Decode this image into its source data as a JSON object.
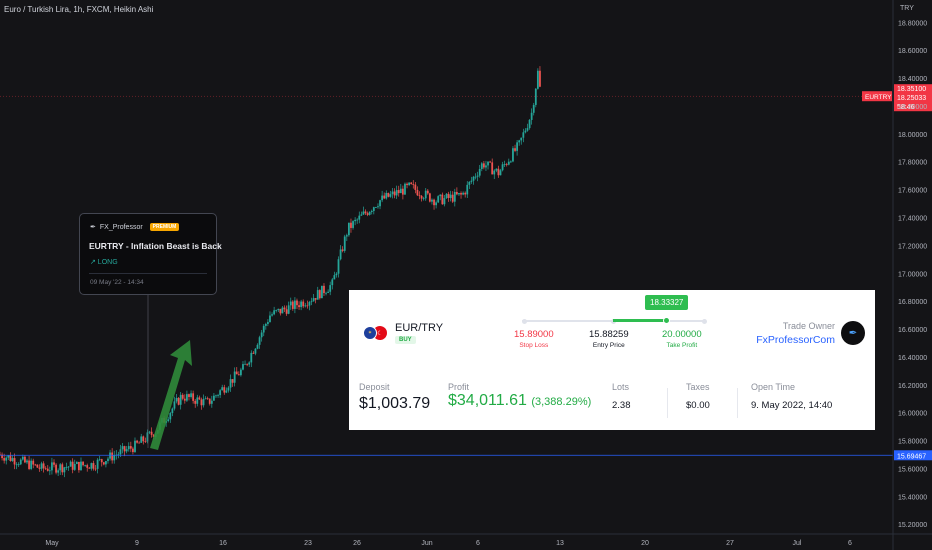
{
  "chart_title": "Euro / Turkish Lira, 1h, FXCM, Heikin Ashi",
  "axis_unit": "TRY",
  "colors": {
    "background": "#141417",
    "up": "#26a69a",
    "down": "#ef5350",
    "entry_line": "#2962ff",
    "last_price_tag": "#f23645",
    "arrow": "#2f8a3a"
  },
  "chart_data": {
    "type": "candlestick",
    "y_ticks": [
      "18.80000",
      "18.60000",
      "18.40000",
      "18.20000",
      "18.00000",
      "17.80000",
      "17.60000",
      "17.40000",
      "17.20000",
      "17.00000",
      "16.80000",
      "16.60000",
      "16.40000",
      "16.20000",
      "16.00000",
      "15.80000",
      "15.60000",
      "15.40000",
      "15.20000"
    ],
    "y_tick_values": [
      18.8,
      18.6,
      18.4,
      18.2,
      18.0,
      17.8,
      17.6,
      17.4,
      17.2,
      17.0,
      16.8,
      16.6,
      16.4,
      16.2,
      16.0,
      15.8,
      15.6,
      15.4,
      15.2
    ],
    "ylim": [
      15.13,
      18.96
    ],
    "x_ticks": [
      "May",
      "9",
      "16",
      "23",
      "26",
      "Jun",
      "6",
      "13",
      "20",
      "27",
      "Jul",
      "6"
    ],
    "price_path": [
      {
        "time_index": 0,
        "price": 15.7
      },
      {
        "time_index": 40,
        "price": 15.6
      },
      {
        "time_index": 90,
        "price": 15.63
      },
      {
        "time_index": 130,
        "price": 15.76
      },
      {
        "time_index": 150,
        "price": 15.87
      },
      {
        "time_index": 175,
        "price": 16.12
      },
      {
        "time_index": 200,
        "price": 16.07
      },
      {
        "time_index": 235,
        "price": 16.32
      },
      {
        "time_index": 260,
        "price": 16.7
      },
      {
        "time_index": 300,
        "price": 16.82
      },
      {
        "time_index": 320,
        "price": 16.92
      },
      {
        "time_index": 335,
        "price": 17.32
      },
      {
        "time_index": 365,
        "price": 17.52
      },
      {
        "time_index": 395,
        "price": 17.62
      },
      {
        "time_index": 420,
        "price": 17.52
      },
      {
        "time_index": 445,
        "price": 17.56
      },
      {
        "time_index": 465,
        "price": 17.79
      },
      {
        "time_index": 480,
        "price": 17.72
      },
      {
        "time_index": 500,
        "price": 17.92
      },
      {
        "time_index": 512,
        "price": 18.15
      },
      {
        "time_index": 518,
        "price": 18.44
      },
      {
        "time_index": 521,
        "price": 18.27
      }
    ],
    "last_price_labels": [
      "18.35100",
      "18.25033",
      "58:46"
    ],
    "symbol_tag": "EURTRY",
    "entry_line_label": "15.69467",
    "entry_line_value": 15.69467
  },
  "post": {
    "author": "FX_Professor",
    "badge": "PREMIUM",
    "title": "EURTRY - Inflation Beast is Back",
    "direction": "↗ LONG",
    "date": "09 May '22 - 14:34"
  },
  "trade": {
    "pair": "EUR/TRY",
    "side": "BUY",
    "current_price": "18.33327",
    "stop_loss": {
      "value": "15.89000",
      "label": "Stop Loss"
    },
    "entry": {
      "value": "15.88259",
      "label": "Entry Price"
    },
    "take_profit": {
      "value": "20.00000",
      "label": "Take Profit"
    },
    "owner_label": "Trade Owner",
    "owner_name": "FxProfessorCom",
    "deposit_label": "Deposit",
    "deposit_value": "$1,003.79",
    "profit_label": "Profit",
    "profit_value": "$34,011.61",
    "profit_pct": "(3,388.29%)",
    "lots_label": "Lots",
    "lots_value": "2.38",
    "taxes_label": "Taxes",
    "taxes_value": "$0.00",
    "open_time_label": "Open Time",
    "open_time_value": "9. May 2022, 14:40"
  }
}
